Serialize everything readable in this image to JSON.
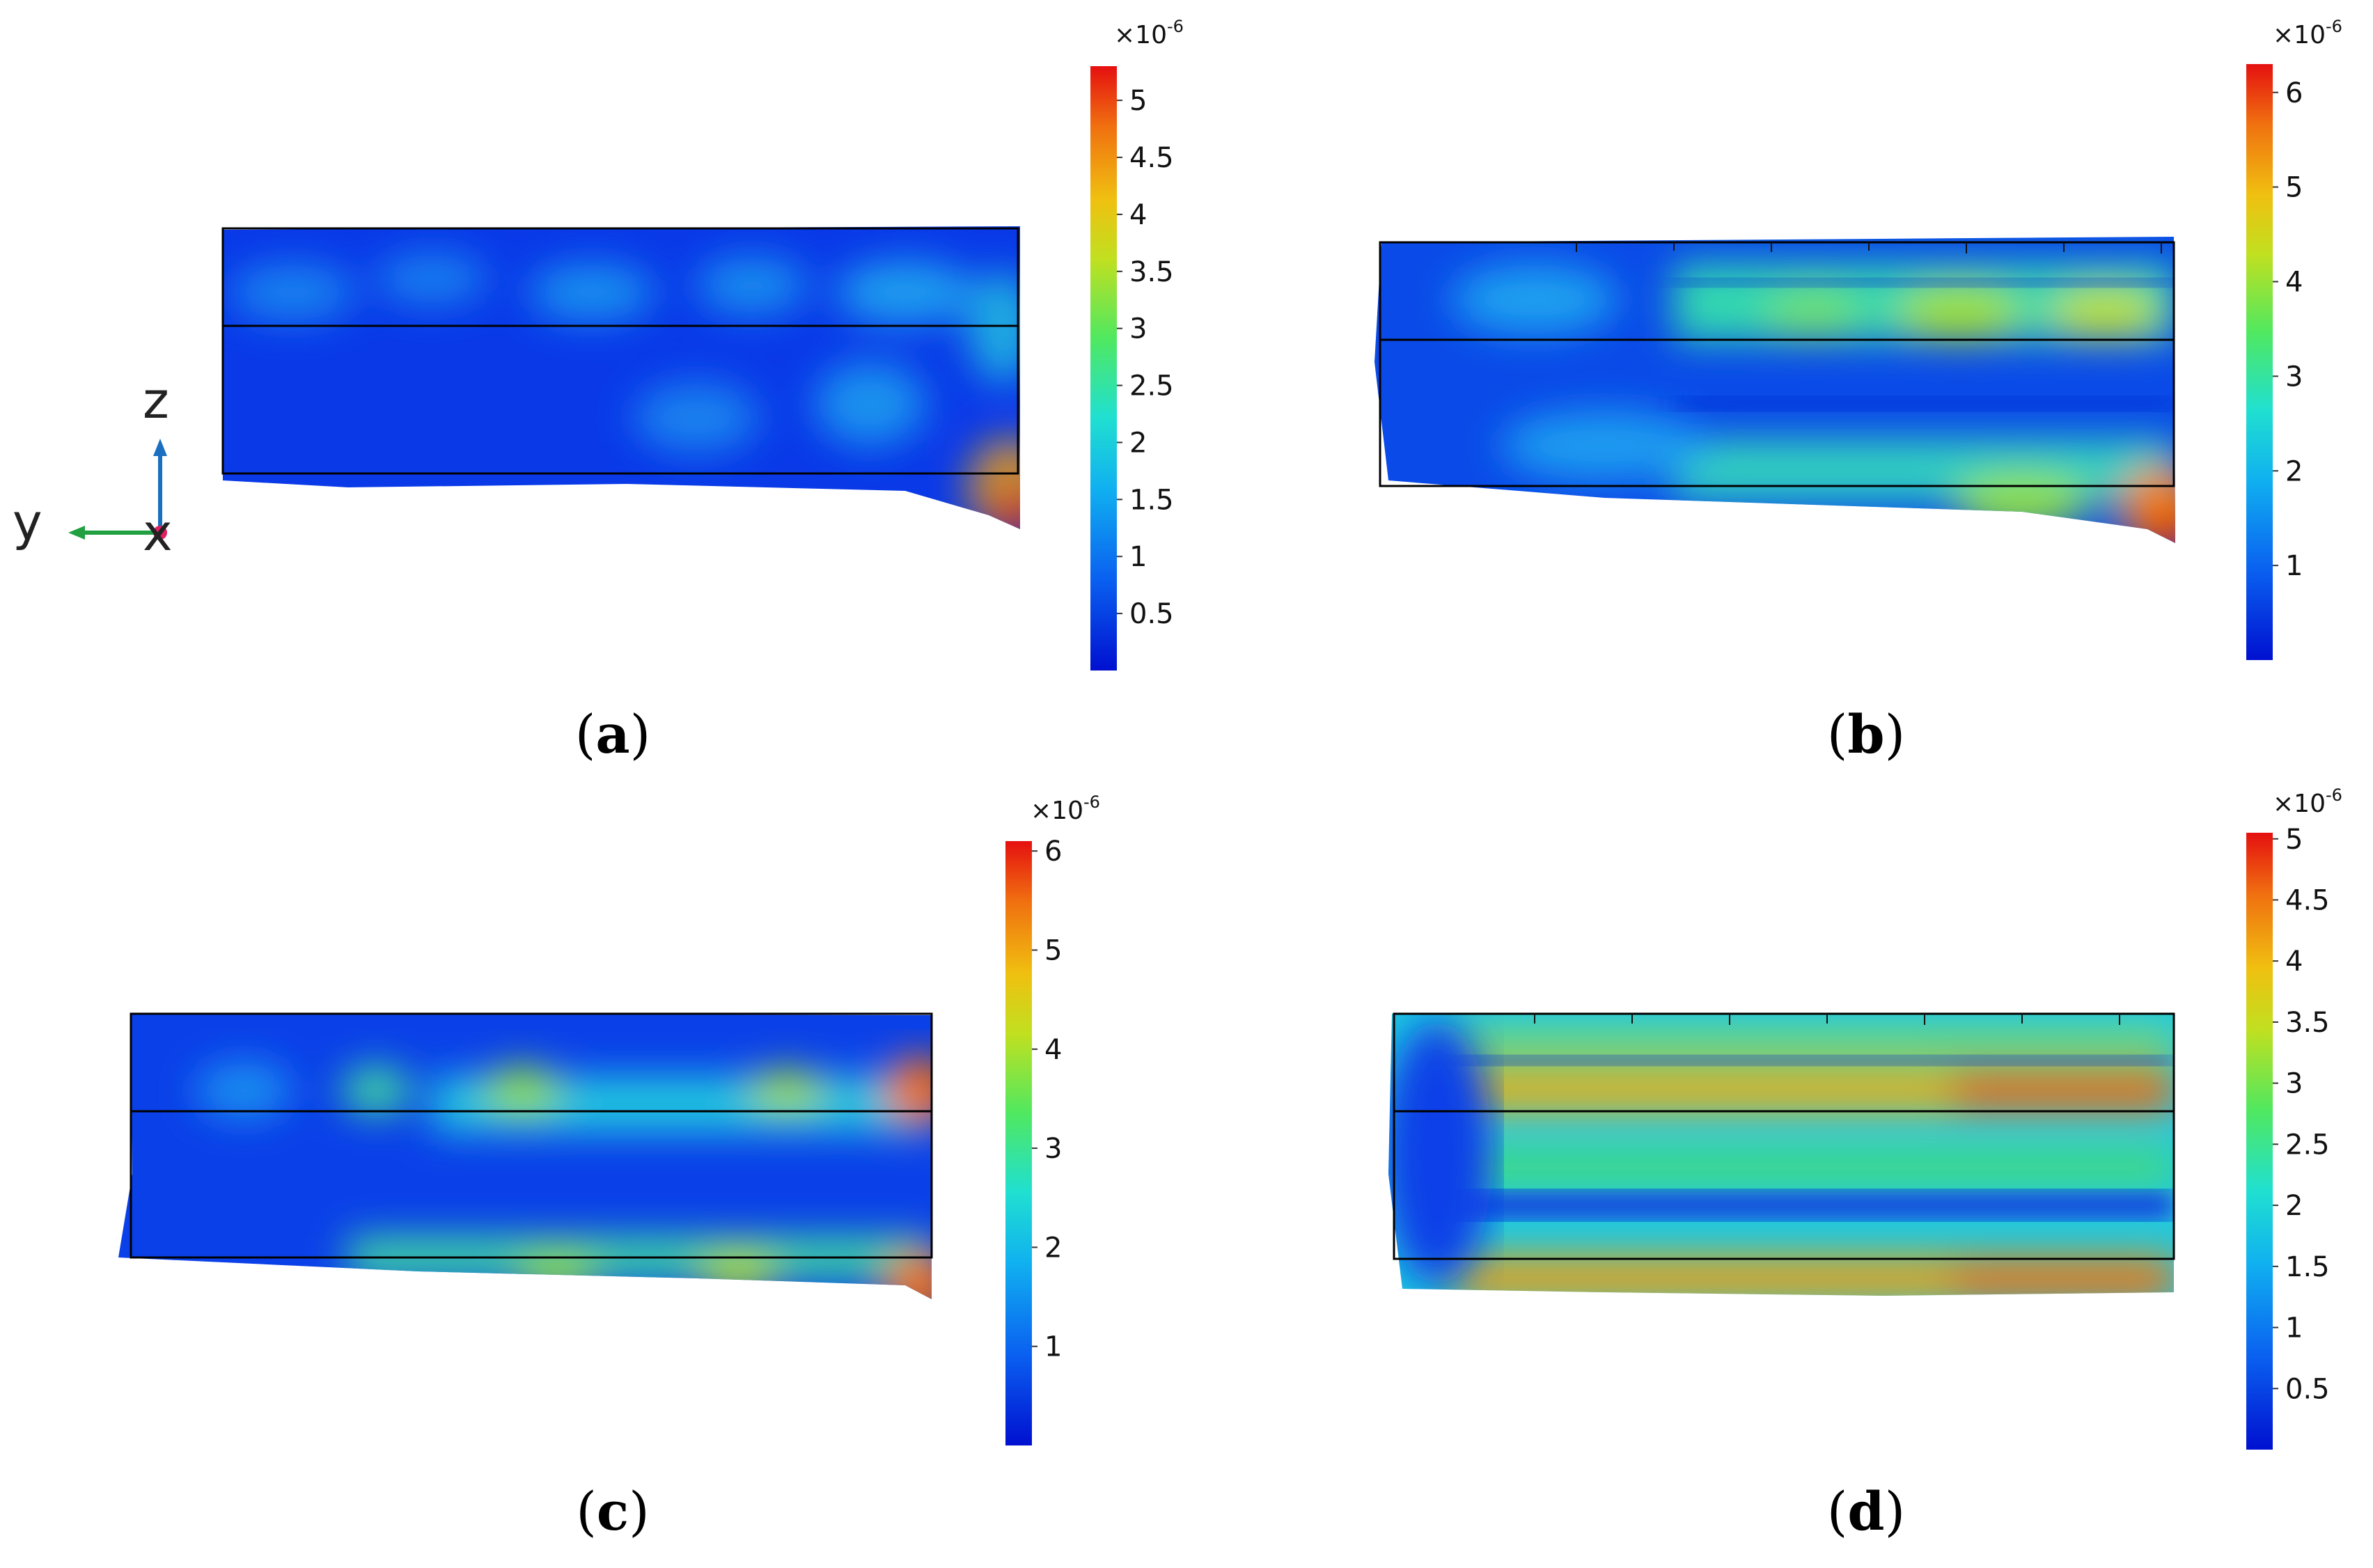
{
  "colors": {
    "blue": "#0a36e8",
    "cyan": "#20c8e0",
    "green": "#38e060",
    "yellow": "#f0d020",
    "orange": "#f07010",
    "red": "#e51010"
  },
  "axes_triad": {
    "z": "z",
    "y": "y",
    "x": "x"
  },
  "panels": [
    {
      "id": "a",
      "caption_open": "(",
      "caption_letter": "a",
      "caption_close": ")",
      "multiplier": "×10",
      "exponent": "-6",
      "ticks": [
        "0.5",
        "1",
        "1.5",
        "2",
        "2.5",
        "3",
        "3.5",
        "4",
        "4.5",
        "5"
      ],
      "max": 5.3
    },
    {
      "id": "b",
      "caption_open": "(",
      "caption_letter": "b",
      "caption_close": ")",
      "multiplier": "×10",
      "exponent": "-6",
      "ticks": [
        "1",
        "2",
        "3",
        "4",
        "5",
        "6"
      ],
      "max": 6.3
    },
    {
      "id": "c",
      "caption_open": "(",
      "caption_letter": "c",
      "caption_close": ")",
      "multiplier": "×10",
      "exponent": "-6",
      "ticks": [
        "1",
        "2",
        "3",
        "4",
        "5",
        "6"
      ],
      "max": 6.1
    },
    {
      "id": "d",
      "caption_open": "(",
      "caption_letter": "d",
      "caption_close": ")",
      "multiplier": "×10",
      "exponent": "-6",
      "ticks": [
        "0.5",
        "1",
        "1.5",
        "2",
        "2.5",
        "3",
        "3.5",
        "4",
        "4.5",
        "5"
      ],
      "max": 5.05
    }
  ]
}
